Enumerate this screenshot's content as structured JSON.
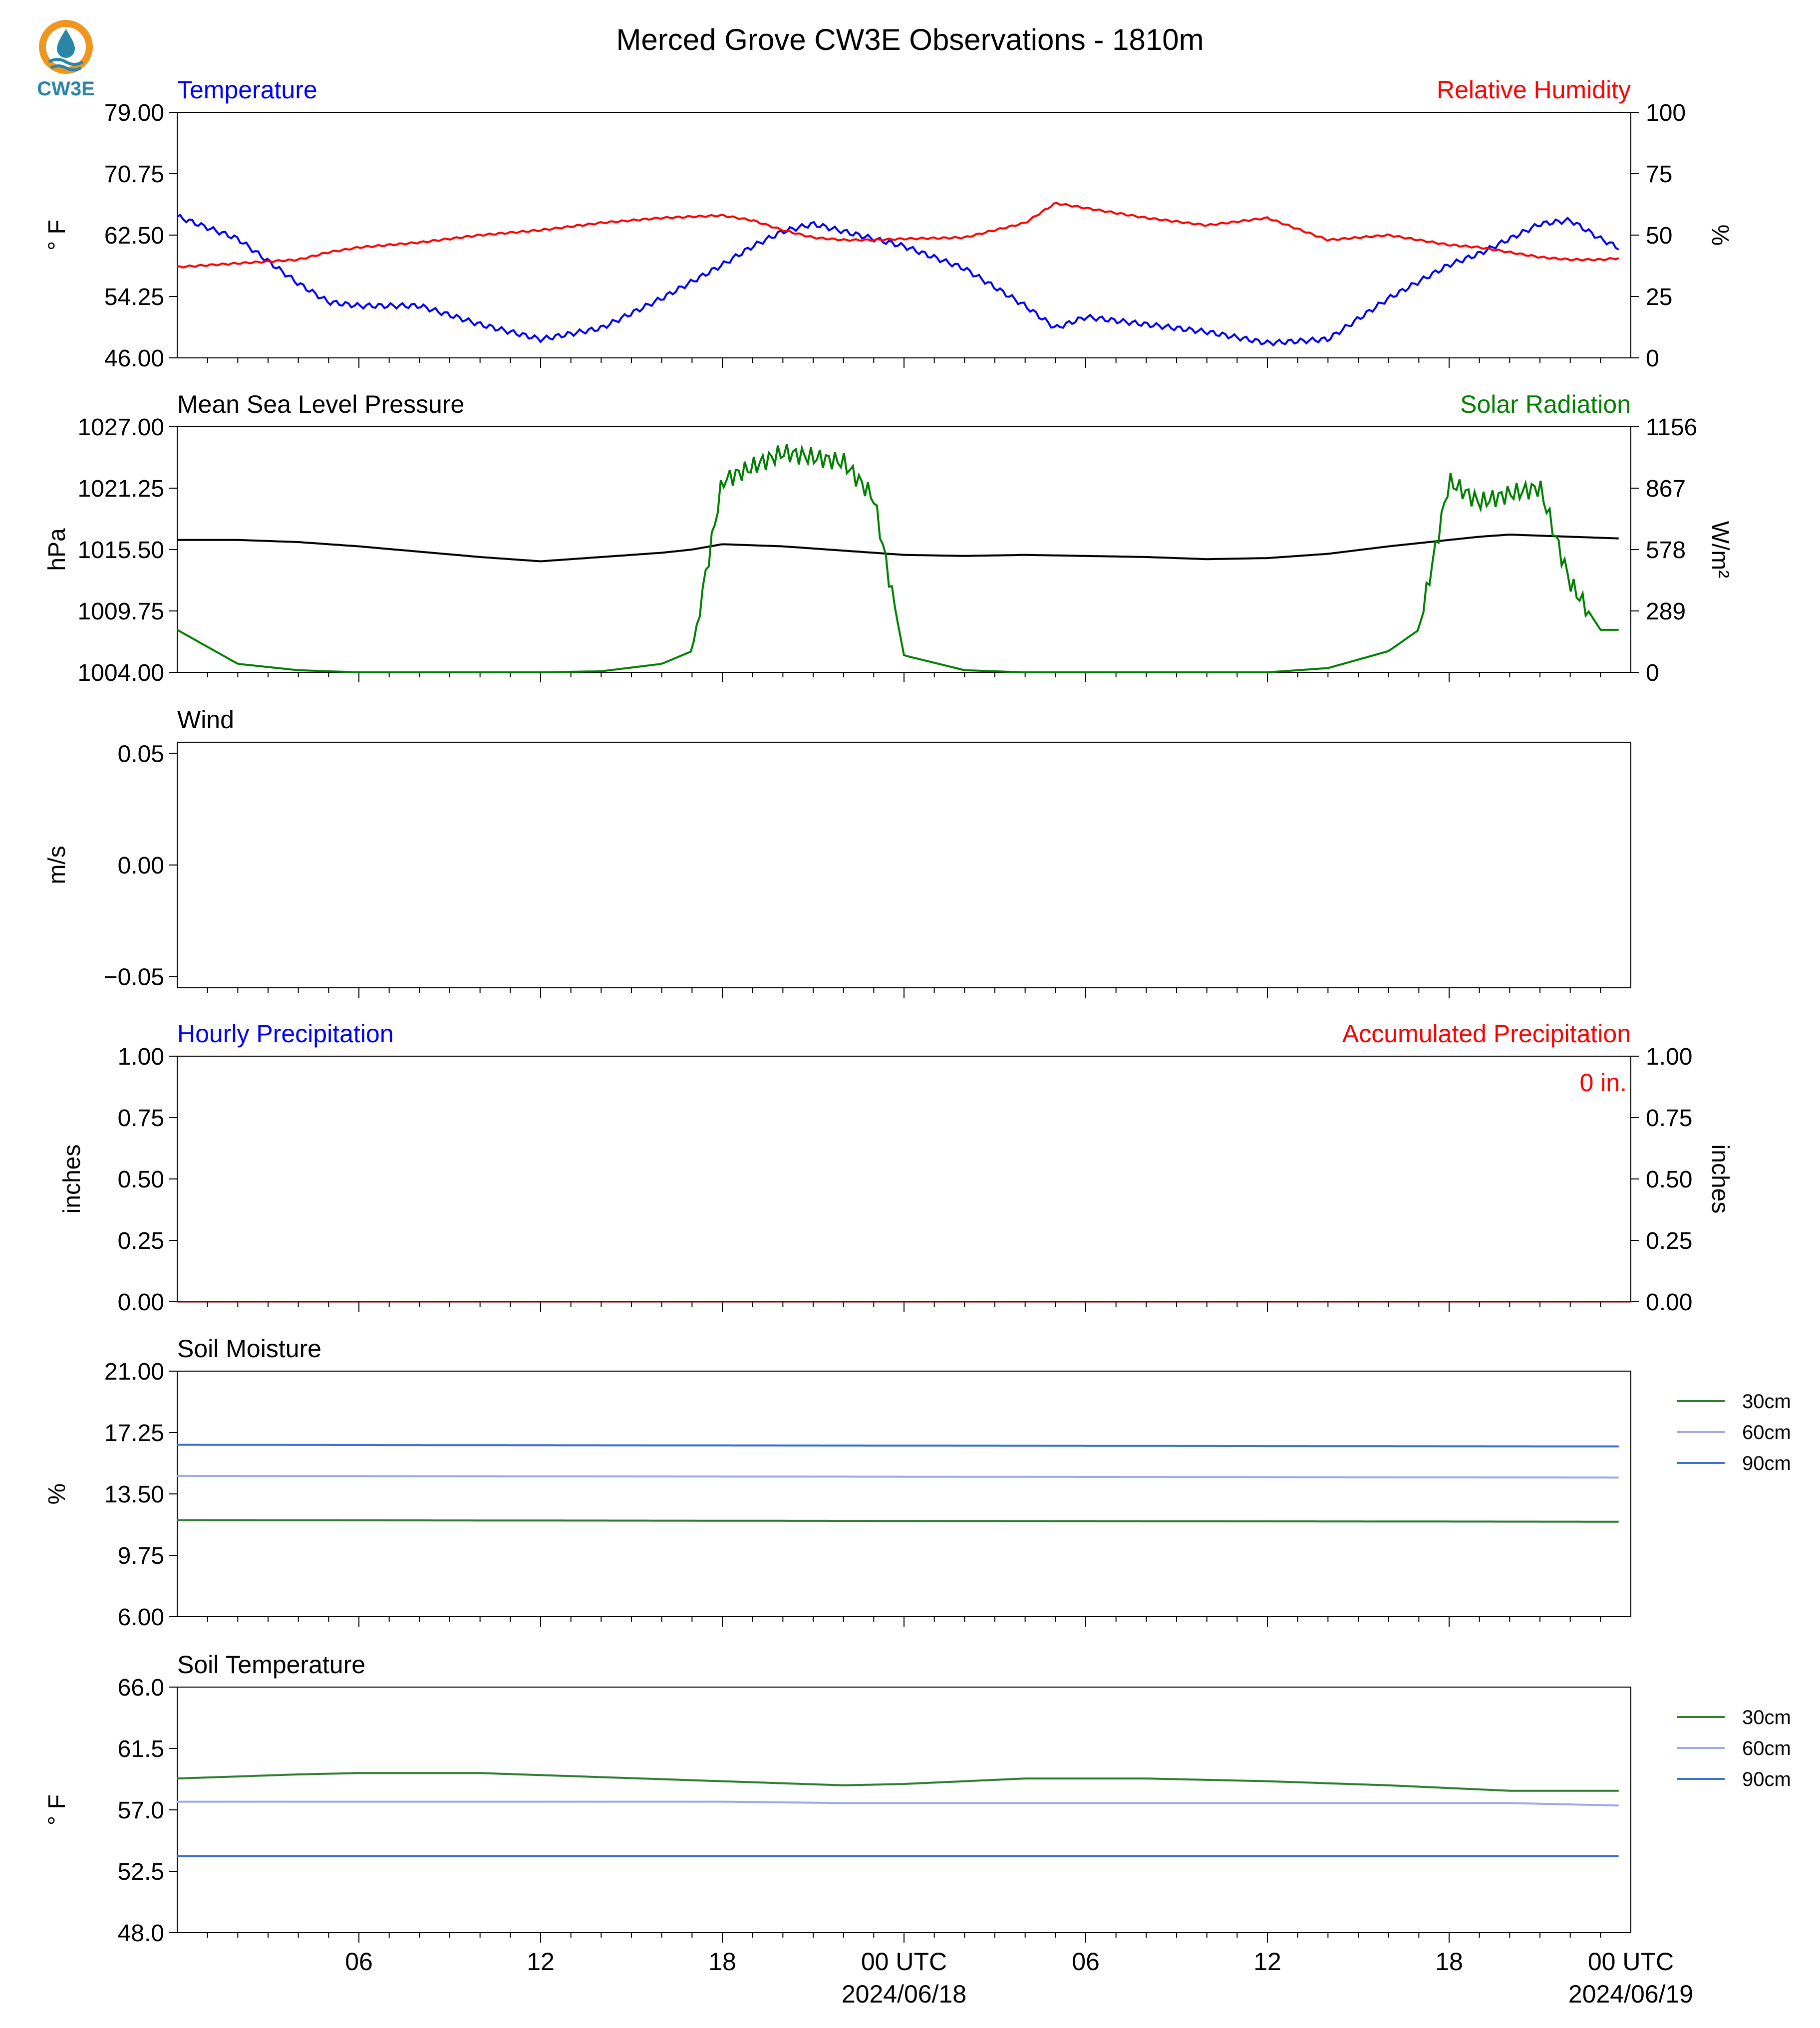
{
  "title": "Merced Grove CW3E Observations - 1810m",
  "logo": {
    "text": "CW3E",
    "colors": {
      "orange": "#f0961e",
      "teal": "#2a86a8"
    }
  },
  "colors": {
    "blue": "#0000ff",
    "red": "#ff0000",
    "green": "#008000",
    "black": "#000000",
    "soil30": "#2e7d32",
    "soil60": "#9fa8e8",
    "soil90": "#3b6fd6"
  },
  "x_axis": {
    "tick_labels": [
      "06",
      "12",
      "18",
      "00 UTC",
      "06",
      "12",
      "18",
      "00 UTC"
    ],
    "date_labels": [
      "2024/06/18",
      "2024/06/19"
    ]
  },
  "chart_data": [
    {
      "type": "line",
      "left_title": "Temperature",
      "right_title": "Relative Humidity",
      "ylabel": "° F",
      "ylabel_right": "%",
      "ylim": [
        46,
        79
      ],
      "ylim_right": [
        0,
        100
      ],
      "yticks": [
        "79.00",
        "70.75",
        "62.50",
        "54.25",
        "46.00"
      ],
      "yticks_right": [
        "100",
        "75",
        "50",
        "25",
        "0"
      ],
      "x": [
        0,
        2,
        4,
        5,
        6,
        8,
        10,
        12,
        14,
        16,
        18,
        19,
        20,
        21,
        22,
        23,
        24,
        26,
        28,
        29,
        30,
        32,
        34,
        36,
        38,
        40,
        42,
        43,
        44,
        45,
        46,
        47,
        48
      ],
      "series": [
        {
          "axis": "left",
          "color": "blue",
          "values": [
            65,
            62,
            56,
            53.5,
            53,
            53,
            50.5,
            48.5,
            50,
            54,
            58.5,
            61,
            63,
            64,
            63,
            62,
            61,
            58,
            53,
            50,
            51.5,
            50.5,
            49.5,
            48,
            48.5,
            54,
            58.5,
            60,
            62,
            64,
            64.5,
            62,
            60
          ]
        },
        {
          "axis": "right",
          "color": "red",
          "values": [
            37,
            38.5,
            40,
            43,
            45,
            47,
            50,
            52,
            55,
            57,
            58,
            56,
            52,
            49,
            48,
            48,
            48.5,
            49,
            55,
            63,
            61,
            57,
            54,
            57,
            48,
            50,
            46,
            45,
            43,
            41,
            40,
            40,
            41
          ]
        }
      ]
    },
    {
      "type": "line",
      "left_title": "Mean Sea Level Pressure",
      "right_title": "Solar Radiation",
      "ylabel": "hPa",
      "ylabel_right": "W/m²",
      "ylim": [
        1004,
        1027
      ],
      "ylim_right": [
        0,
        1156
      ],
      "yticks": [
        "1027.00",
        "1021.25",
        "1015.50",
        "1009.75",
        "1004.00"
      ],
      "yticks_right": [
        "1156",
        "867",
        "578",
        "289",
        "0"
      ],
      "x": [
        0,
        2,
        4,
        6,
        8,
        10,
        12,
        14,
        16,
        17,
        18,
        20,
        22,
        23,
        24,
        26,
        28,
        30,
        32,
        34,
        36,
        38,
        40,
        41,
        42,
        43,
        44,
        45,
        46,
        47,
        48
      ],
      "series": [
        {
          "axis": "left",
          "color": "black",
          "values": [
            1016.4,
            1016.4,
            1016.2,
            1015.8,
            1015.3,
            1014.8,
            1014.4,
            1014.8,
            1015.2,
            1015.5,
            1016.0,
            1015.8,
            1015.4,
            1015.2,
            1015.0,
            1014.9,
            1015.0,
            1014.9,
            1014.8,
            1014.6,
            1014.7,
            1015.1,
            1015.8,
            1016.1,
            1016.4,
            1016.7,
            1016.9,
            1016.8,
            1016.7,
            1016.6,
            1016.5
          ]
        },
        {
          "axis": "right",
          "color": "green",
          "values": [
            200,
            40,
            10,
            0,
            0,
            0,
            0,
            5,
            40,
            100,
            900,
            1035,
            990,
            820,
            80,
            10,
            0,
            0,
            0,
            0,
            0,
            20,
            100,
            200,
            900,
            800,
            840,
            870,
            420,
            200,
            200
          ]
        }
      ]
    },
    {
      "type": "line",
      "left_title": "Wind",
      "ylabel": "m/s",
      "ylim": [
        -0.055,
        0.055
      ],
      "yticks": [
        "0.05",
        "0.00",
        "−0.05"
      ],
      "series": []
    },
    {
      "type": "bar",
      "left_title": "Hourly Precipitation",
      "right_title": "Accumulated Precipitation",
      "ylabel": "inches",
      "ylabel_right": "inches",
      "ylim": [
        0,
        1
      ],
      "ylim_right": [
        0,
        1
      ],
      "yticks": [
        "1.00",
        "0.75",
        "0.50",
        "0.25",
        "0.00"
      ],
      "yticks_right": [
        "1.00",
        "0.75",
        "0.50",
        "0.25",
        "0.00"
      ],
      "annotation": "0 in.",
      "hourly": 0,
      "accumulated": 0
    },
    {
      "type": "line",
      "left_title": "Soil Moisture",
      "ylabel": "%",
      "ylim": [
        6,
        21
      ],
      "yticks": [
        "21.00",
        "17.25",
        "13.50",
        "9.75",
        "6.00"
      ],
      "x": [
        0,
        48
      ],
      "series": [
        {
          "name": "30cm",
          "color": "soil30",
          "values": [
            11.9,
            11.8
          ]
        },
        {
          "name": "60cm",
          "color": "soil60",
          "values": [
            14.6,
            14.5
          ]
        },
        {
          "name": "90cm",
          "color": "soil90",
          "values": [
            16.5,
            16.4
          ]
        }
      ]
    },
    {
      "type": "line",
      "left_title": "Soil Temperature",
      "ylabel": "° F",
      "ylim": [
        48,
        66
      ],
      "yticks": [
        "66.0",
        "61.5",
        "57.0",
        "52.5",
        "48.0"
      ],
      "x": [
        0,
        4,
        6,
        10,
        14,
        18,
        22,
        24,
        28,
        32,
        36,
        40,
        44,
        48
      ],
      "series": [
        {
          "name": "30cm",
          "color": "soil30",
          "values": [
            59.3,
            59.6,
            59.7,
            59.7,
            59.4,
            59.1,
            58.8,
            58.9,
            59.3,
            59.3,
            59.1,
            58.8,
            58.4,
            58.4
          ]
        },
        {
          "name": "60cm",
          "color": "soil60",
          "values": [
            57.6,
            57.6,
            57.6,
            57.6,
            57.6,
            57.6,
            57.5,
            57.5,
            57.5,
            57.5,
            57.5,
            57.5,
            57.5,
            57.3
          ]
        },
        {
          "name": "90cm",
          "color": "soil90",
          "values": [
            53.6,
            53.6,
            53.6,
            53.6,
            53.6,
            53.6,
            53.6,
            53.6,
            53.6,
            53.6,
            53.6,
            53.6,
            53.6,
            53.6
          ]
        }
      ]
    }
  ]
}
